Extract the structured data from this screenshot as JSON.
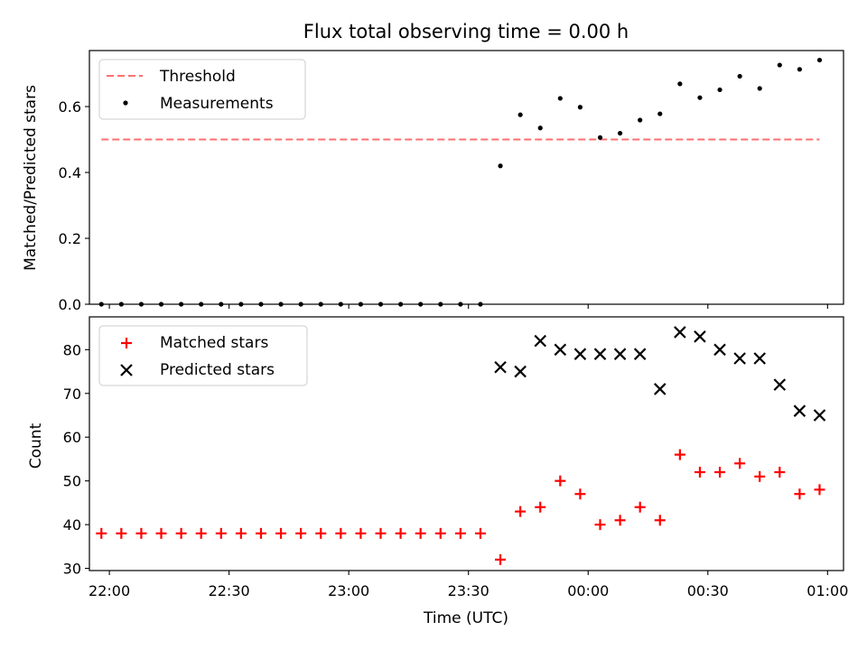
{
  "chart_data": [
    {
      "type": "scatter",
      "title": "Flux total observing time = 0.00 h",
      "xlabel": "",
      "ylabel": "Matched/Predicted stars",
      "ylim": [
        0,
        0.77
      ],
      "yticks": [
        "0.0",
        "0.2",
        "0.4",
        "0.6"
      ],
      "ytick_values": [
        0,
        0.2,
        0.4,
        0.6
      ],
      "xlim": [
        "21:55",
        "01:04"
      ],
      "legend": "upper-left",
      "threshold": {
        "name": "Threshold",
        "value": 0.5,
        "x_start": "21:58",
        "x_end": "00:58",
        "color": "#ff7070"
      },
      "series": [
        {
          "name": "Measurements",
          "color": "#000000",
          "marker": "dot",
          "x": [
            "21:58",
            "22:03",
            "22:08",
            "22:13",
            "22:18",
            "22:23",
            "22:28",
            "22:33",
            "22:38",
            "22:43",
            "22:48",
            "22:53",
            "22:58",
            "23:03",
            "23:08",
            "23:13",
            "23:18",
            "23:23",
            "23:28",
            "23:33",
            "23:38",
            "23:43",
            "23:48",
            "23:53",
            "23:58",
            "00:03",
            "00:08",
            "00:13",
            "00:18",
            "00:23",
            "00:28",
            "00:33",
            "00:38",
            "00:43",
            "00:48",
            "00:53",
            "00:58"
          ],
          "y": [
            0,
            0,
            0,
            0,
            0,
            0,
            0,
            0,
            0,
            0,
            0,
            0,
            0,
            0,
            0,
            0,
            0,
            0,
            0,
            0,
            0.42,
            0.575,
            0.535,
            0.625,
            0.598,
            0.506,
            0.519,
            0.559,
            0.578,
            0.669,
            0.627,
            0.651,
            0.692,
            0.655,
            0.726,
            0.713,
            0.741
          ]
        }
      ]
    },
    {
      "type": "scatter",
      "title": "",
      "xlabel": "Time (UTC)",
      "ylabel": "Count",
      "ylim": [
        29.5,
        87.5
      ],
      "yticks": [
        "30",
        "40",
        "50",
        "60",
        "70",
        "80"
      ],
      "ytick_values": [
        30,
        40,
        50,
        60,
        70,
        80
      ],
      "xlim": [
        "21:55",
        "01:04"
      ],
      "xticks": [
        "22:00",
        "22:30",
        "23:00",
        "23:30",
        "00:00",
        "00:30",
        "01:00"
      ],
      "legend": "upper-left",
      "series": [
        {
          "name": "Matched stars",
          "color": "#ff0000",
          "marker": "plus",
          "x": [
            "21:58",
            "22:03",
            "22:08",
            "22:13",
            "22:18",
            "22:23",
            "22:28",
            "22:33",
            "22:38",
            "22:43",
            "22:48",
            "22:53",
            "22:58",
            "23:03",
            "23:08",
            "23:13",
            "23:18",
            "23:23",
            "23:28",
            "23:33",
            "23:38",
            "23:43",
            "23:48",
            "23:53",
            "23:58",
            "00:03",
            "00:08",
            "00:13",
            "00:18",
            "00:23",
            "00:28",
            "00:33",
            "00:38",
            "00:43",
            "00:48",
            "00:53",
            "00:58"
          ],
          "y": [
            38,
            38,
            38,
            38,
            38,
            38,
            38,
            38,
            38,
            38,
            38,
            38,
            38,
            38,
            38,
            38,
            38,
            38,
            38,
            38,
            32,
            43,
            44,
            50,
            47,
            40,
            41,
            44,
            41,
            56,
            52,
            52,
            54,
            51,
            52,
            47,
            48
          ]
        },
        {
          "name": "Predicted stars",
          "color": "#000000",
          "marker": "x",
          "x": [
            "23:38",
            "23:43",
            "23:48",
            "23:53",
            "23:58",
            "00:03",
            "00:08",
            "00:13",
            "00:18",
            "00:23",
            "00:28",
            "00:33",
            "00:38",
            "00:43",
            "00:48",
            "00:53",
            "00:58"
          ],
          "y": [
            76,
            75,
            82,
            80,
            79,
            79,
            79,
            79,
            71,
            84,
            83,
            80,
            78,
            78,
            72,
            66,
            65
          ]
        }
      ]
    }
  ]
}
